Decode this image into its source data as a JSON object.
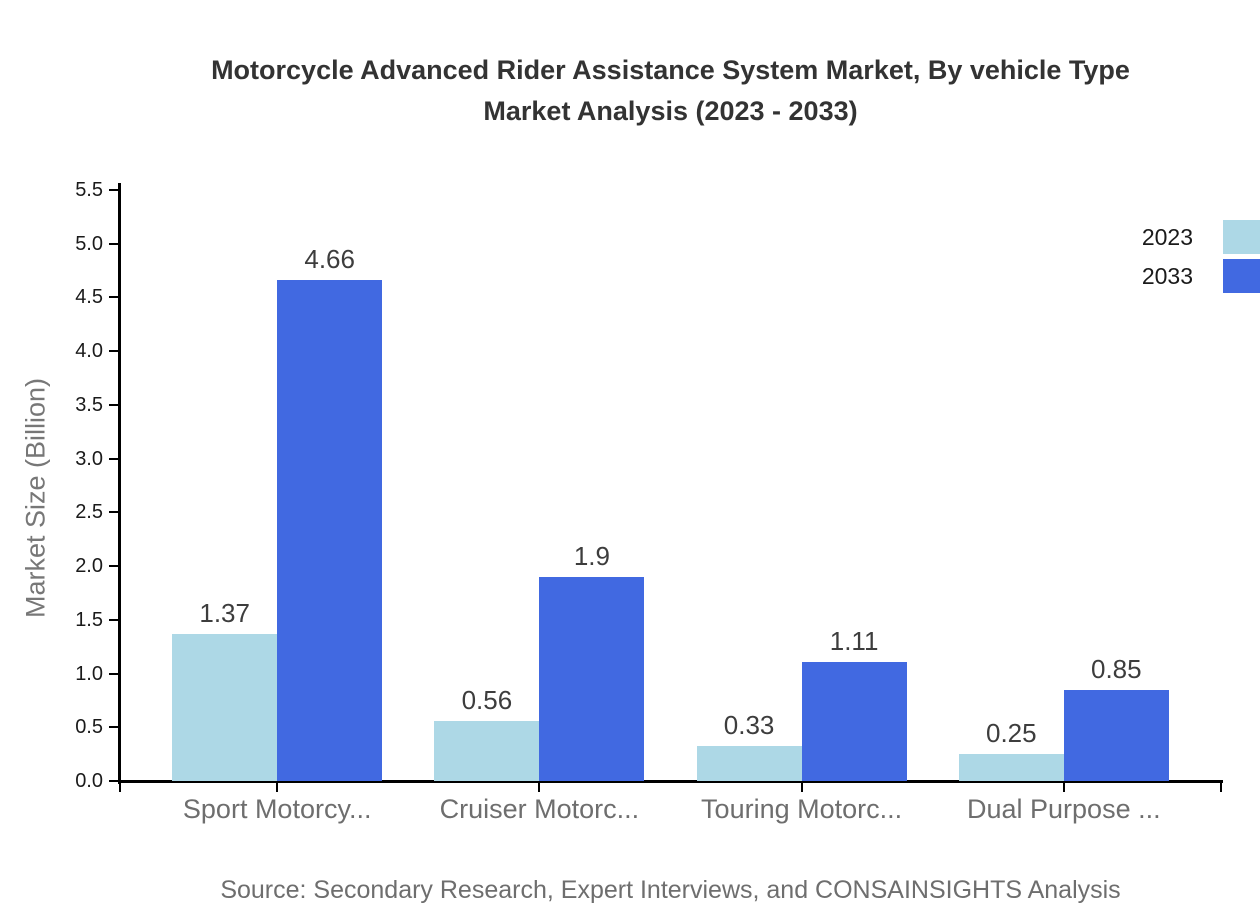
{
  "title": {
    "line1": "Motorcycle Advanced Rider Assistance System Market, By vehicle Type",
    "line2": "Market Analysis (2023 - 2033)"
  },
  "source": "Source: Secondary Research, Expert Interviews, and CONSAINSIGHTS Analysis",
  "legend": {
    "items": [
      {
        "label": "2023",
        "color": "#ADD8E6"
      },
      {
        "label": "2033",
        "color": "#4169E1"
      }
    ]
  },
  "chart_data": {
    "type": "bar",
    "title": "Motorcycle Advanced Rider Assistance System Market, By vehicle Type Market Analysis (2023 - 2033)",
    "categories": [
      "Sport Motorcy...",
      "Cruiser Motorc...",
      "Touring Motorc...",
      "Dual Purpose ..."
    ],
    "series": [
      {
        "name": "2023",
        "color": "#ADD8E6",
        "values": [
          1.37,
          0.56,
          0.33,
          0.25
        ],
        "labels": [
          "1.37",
          "0.56",
          "0.33",
          "0.25"
        ]
      },
      {
        "name": "2033",
        "color": "#4169E1",
        "values": [
          4.66,
          1.9,
          1.11,
          0.85
        ],
        "labels": [
          "4.66",
          "1.9",
          "1.11",
          "0.85"
        ]
      }
    ],
    "xlabel": "",
    "ylabel": "Market Size (Billion)",
    "ylim": [
      0,
      5.5
    ],
    "ytick_step": 0.5,
    "ytick_format": "one_decimal",
    "grid": false,
    "legend_position": "top-right",
    "value_labels_shown": true
  }
}
